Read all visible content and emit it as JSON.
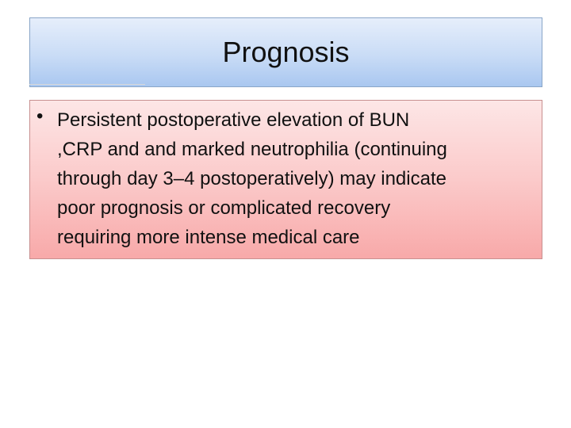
{
  "title": "Prognosis",
  "bullets": [
    {
      "lines": [
        "Persistent postoperative elevation of BUN",
        ",CRP and and  marked neutrophilia (continuing",
        "through day 3–4 postoperatively) may indicate",
        "poor prognosis or complicated recovery",
        "requiring more intense medical care"
      ]
    }
  ]
}
